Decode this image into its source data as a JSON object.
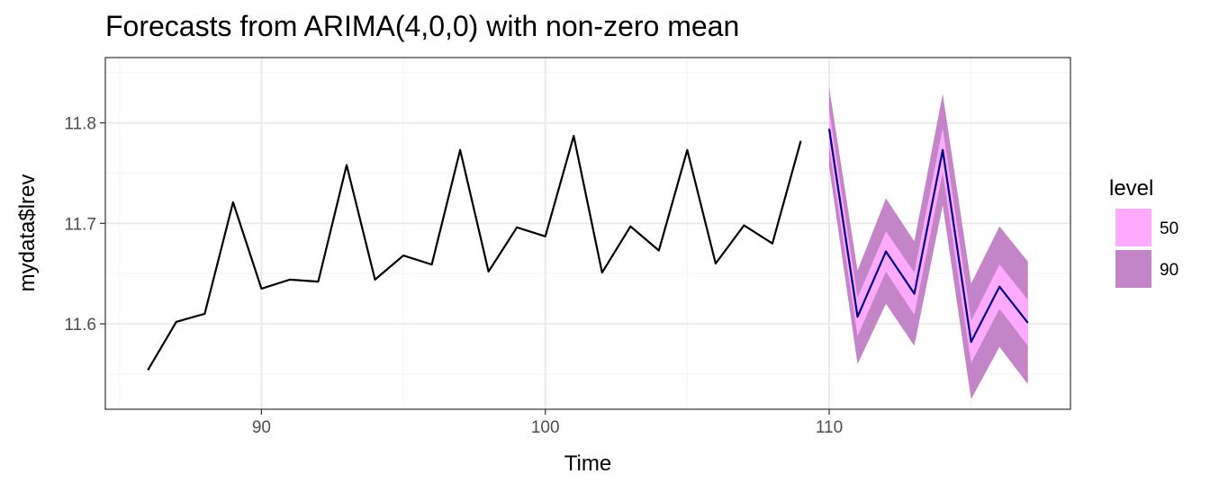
{
  "chart_data": {
    "type": "line",
    "title": "Forecasts from ARIMA(4,0,0) with non-zero mean",
    "xlabel": "Time",
    "ylabel": "mydata$lrev",
    "xlim": [
      84.5,
      118.5
    ],
    "ylim": [
      11.515,
      11.865
    ],
    "x_ticks": [
      90,
      100,
      110
    ],
    "x_tick_labels": [
      "90",
      "100",
      "110"
    ],
    "x_minor_ticks": [
      85,
      95,
      105,
      115
    ],
    "y_ticks": [
      11.6,
      11.7,
      11.8
    ],
    "y_tick_labels": [
      "11.6",
      "11.7",
      "11.8"
    ],
    "y_minor_ticks": [
      11.55,
      11.65,
      11.75,
      11.85
    ],
    "grid": true,
    "legend_position": "right",
    "colors": {
      "observed": "#000000",
      "forecast": "#00008b",
      "band_50": "#ffaaff",
      "band_90": "#c484c8",
      "grid_major": "#ebebeb",
      "grid_minor": "#f5f5f5",
      "border": "#333333"
    },
    "series": [
      {
        "x": [
          86,
          87,
          88,
          89,
          90,
          91,
          92,
          93,
          94,
          95,
          96,
          97,
          98,
          99,
          100,
          101,
          102,
          103,
          104,
          105,
          106,
          107,
          108,
          109
        ],
        "values": [
          11.554,
          11.602,
          11.61,
          11.721,
          11.635,
          11.644,
          11.642,
          11.758,
          11.644,
          11.668,
          11.659,
          11.773,
          11.652,
          11.696,
          11.687,
          11.787,
          11.651,
          11.697,
          11.673,
          11.773,
          11.66,
          11.698,
          11.68,
          11.782
        ]
      },
      {
        "x": [
          110,
          111,
          112,
          113,
          114,
          115,
          116,
          117
        ],
        "values": [
          11.794,
          11.607,
          11.672,
          11.63,
          11.773,
          11.582,
          11.637,
          11.601
        ]
      }
    ],
    "intervals": {
      "50": {
        "lower": [
          11.775,
          11.588,
          11.652,
          11.609,
          11.751,
          11.561,
          11.615,
          11.578
        ],
        "upper": [
          11.813,
          11.626,
          11.692,
          11.651,
          11.795,
          11.603,
          11.659,
          11.624
        ]
      },
      "90": {
        "lower": [
          11.756,
          11.56,
          11.62,
          11.578,
          11.718,
          11.525,
          11.577,
          11.54
        ],
        "upper": [
          11.835,
          11.653,
          11.725,
          11.682,
          11.829,
          11.64,
          11.697,
          11.662
        ]
      }
    },
    "legend": {
      "title": "level",
      "entries": [
        {
          "label": "50",
          "color": "#ffaaff"
        },
        {
          "label": "90",
          "color": "#c484c8"
        }
      ]
    }
  }
}
